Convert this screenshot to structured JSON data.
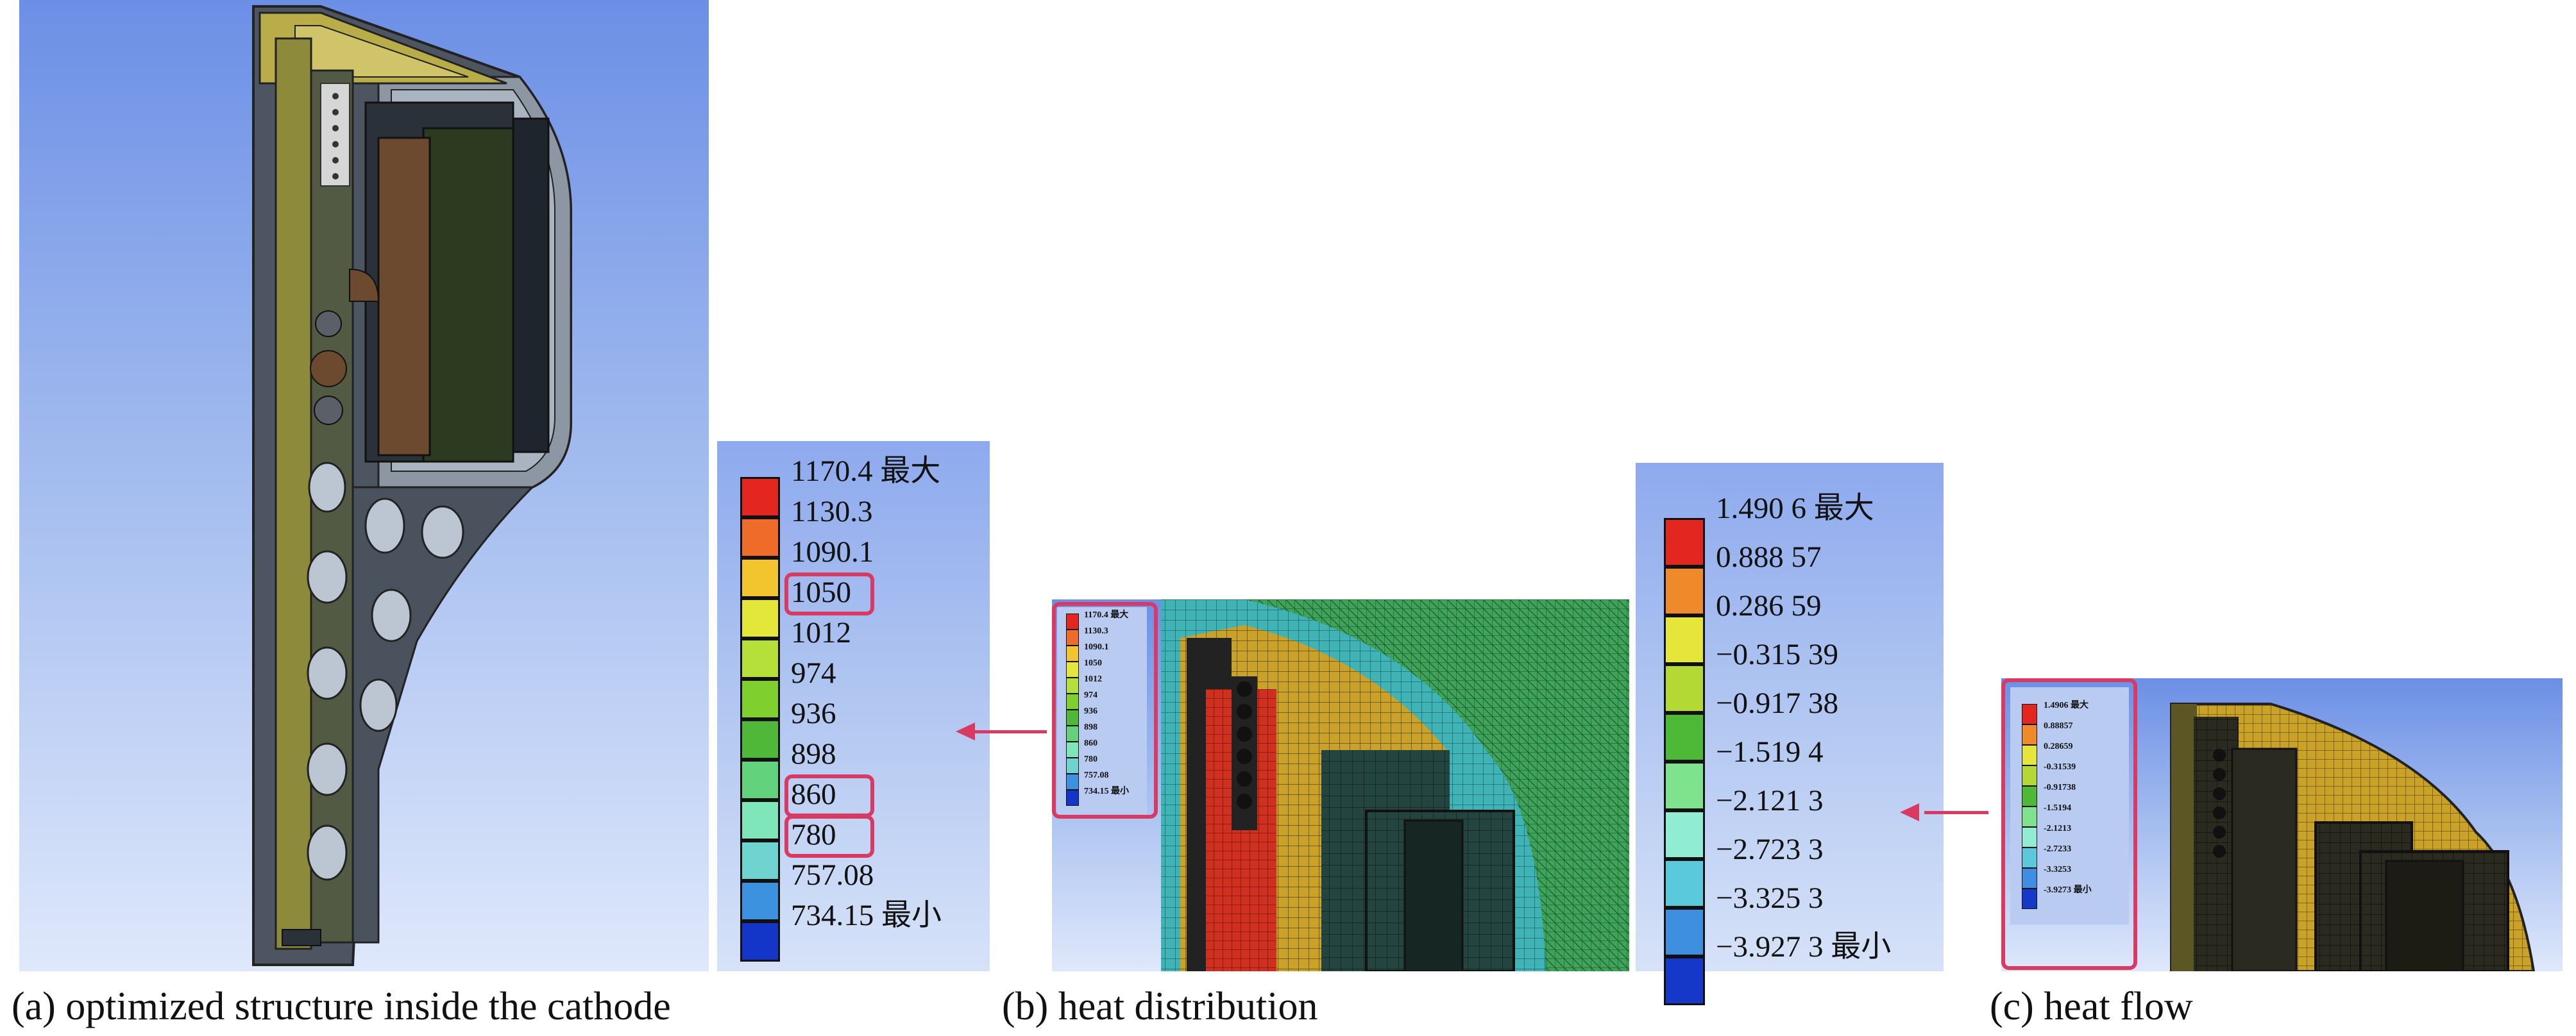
{
  "captions": {
    "a": "(a) optimized structure inside the cathode",
    "b": "(b) heat distribution",
    "c": "(c) heat flow"
  },
  "temperature_legend": {
    "items": [
      {
        "label": "1170.4 最大",
        "color": "#e3261f"
      },
      {
        "label": "1130.3",
        "color": "#ef6b2a"
      },
      {
        "label": "1090.1",
        "color": "#f2c52e"
      },
      {
        "label": "1050",
        "color": "#e2e73a",
        "highlighted": true
      },
      {
        "label": "1012",
        "color": "#b5e03a"
      },
      {
        "label": "974",
        "color": "#7fcf2f"
      },
      {
        "label": "936",
        "color": "#4fb838"
      },
      {
        "label": "898",
        "color": "#63d27d"
      },
      {
        "label": "860",
        "color": "#7ee6b8",
        "highlighted": true
      },
      {
        "label": "780",
        "color": "#6fd4d0",
        "highlighted": true
      },
      {
        "label": "757.08",
        "color": "#3d92e0"
      },
      {
        "label": "734.15 最小",
        "color": "#1336c8"
      }
    ]
  },
  "heat_flow_legend": {
    "items": [
      {
        "label": "1.490 6 最大",
        "color": "#e3261f"
      },
      {
        "label": "0.888 57",
        "color": "#ef8a2a"
      },
      {
        "label": "0.286 59",
        "color": "#e6e63a"
      },
      {
        "label": "−0.315 39",
        "color": "#b5d934"
      },
      {
        "label": "−0.917 38",
        "color": "#4eb837"
      },
      {
        "label": "−1.519 4",
        "color": "#7fe38e"
      },
      {
        "label": "−2.121 3",
        "color": "#90ecd2"
      },
      {
        "label": "−2.723 3",
        "color": "#5ac9dc"
      },
      {
        "label": "−3.325 3",
        "color": "#3f8fe0"
      },
      {
        "label": "−3.927 3 最小",
        "color": "#1538c9"
      }
    ]
  },
  "small_temperature_legend": [
    "1170.4 最大",
    "1130.3",
    "1090.1",
    "1050",
    "1012",
    "974",
    "936",
    "898",
    "860",
    "780",
    "757.08",
    "734.15 最小"
  ],
  "small_heat_flow_legend": [
    "1.4906 最大",
    "0.88857",
    "0.28659",
    "-0.31539",
    "-0.91738",
    "-1.5194",
    "-2.1213",
    "-2.7233",
    "-3.3253",
    "-3.9273 最小"
  ],
  "icons": {
    "arrow_b": "left-arrow-icon",
    "arrow_c": "left-arrow-icon"
  },
  "colors": {
    "highlight": "#d93a62",
    "mesh_yellow": "#c9a227",
    "mesh_green": "#3fa45b",
    "mesh_teal": "#2f9fa5",
    "mesh_red": "#d0301f"
  }
}
